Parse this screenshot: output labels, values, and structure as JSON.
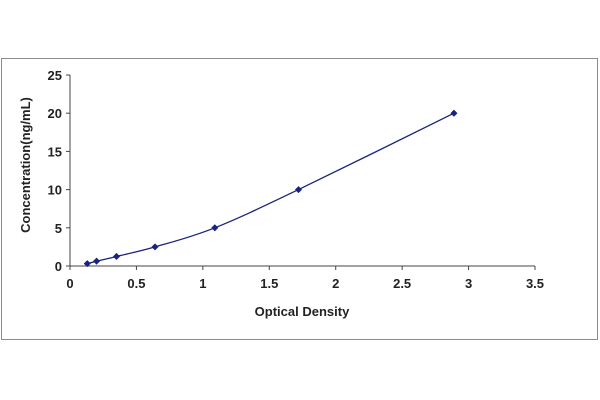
{
  "chart_data": {
    "type": "scatter",
    "title": "",
    "xlabel": "Optical Density",
    "ylabel": "Concentration(ng/mL)",
    "xlim": [
      0,
      3.5
    ],
    "ylim": [
      0,
      25
    ],
    "xticks": [
      "0",
      "0.5",
      "1",
      "1.5",
      "2",
      "2.5",
      "3",
      "3.5"
    ],
    "yticks": [
      "0",
      "5",
      "10",
      "15",
      "20",
      "25"
    ],
    "grid": false,
    "legend": "none",
    "series": [
      {
        "points": [
          {
            "x": 0.13,
            "y": 0.31
          },
          {
            "x": 0.2,
            "y": 0.63
          },
          {
            "x": 0.35,
            "y": 1.25
          },
          {
            "x": 0.64,
            "y": 2.5
          },
          {
            "x": 1.09,
            "y": 5
          },
          {
            "x": 1.72,
            "y": 10
          },
          {
            "x": 2.89,
            "y": 20
          }
        ],
        "curve": "smooth",
        "color": "#1a237e"
      }
    ]
  }
}
